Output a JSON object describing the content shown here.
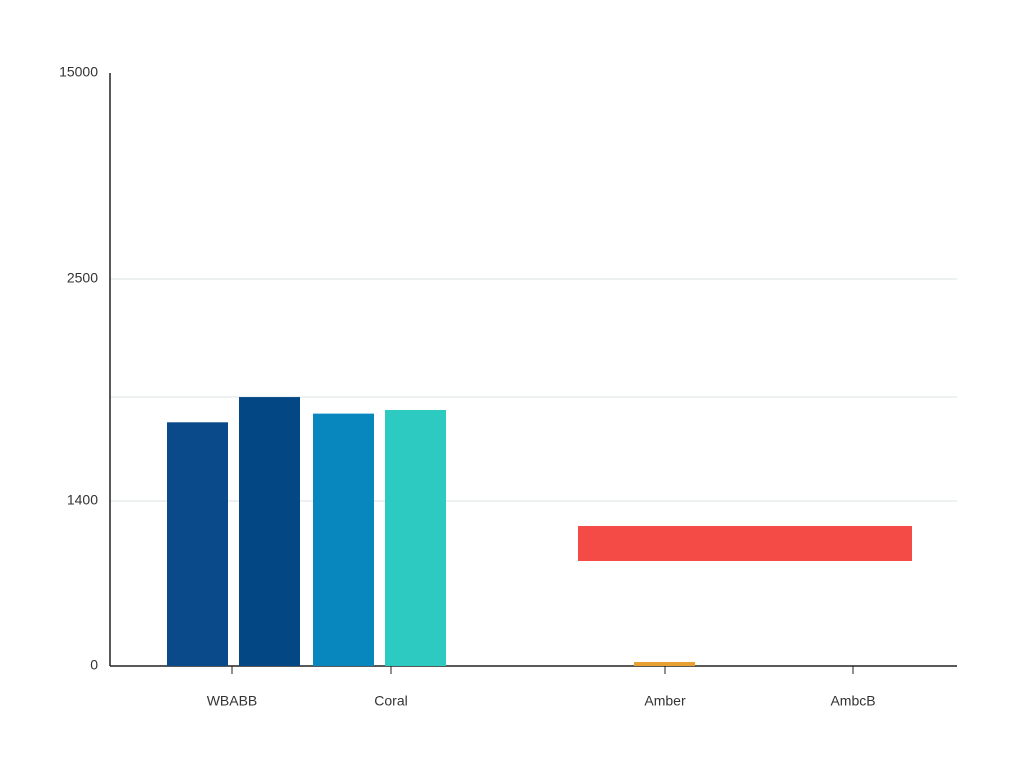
{
  "chart_data": {
    "type": "bar",
    "categories": [
      "WBABB",
      "Coral",
      "Amber",
      "AmbcB"
    ],
    "series": [
      {
        "colors": [
          "#0b4a8a",
          "#0887be",
          "#e8a030",
          null
        ],
        "values": [
          1790,
          1833,
          34,
          null
        ]
      },
      {
        "colors": [
          "#034884",
          "#2ccac0",
          null,
          null
        ],
        "values": [
          1915,
          1851,
          null,
          null
        ]
      }
    ],
    "floating": {
      "color": "#f54b47",
      "low": 891,
      "high": 1188
    },
    "ylim": [
      0,
      15000
    ],
    "yticks": [
      0,
      1400,
      2500,
      15000
    ],
    "grid": true
  }
}
